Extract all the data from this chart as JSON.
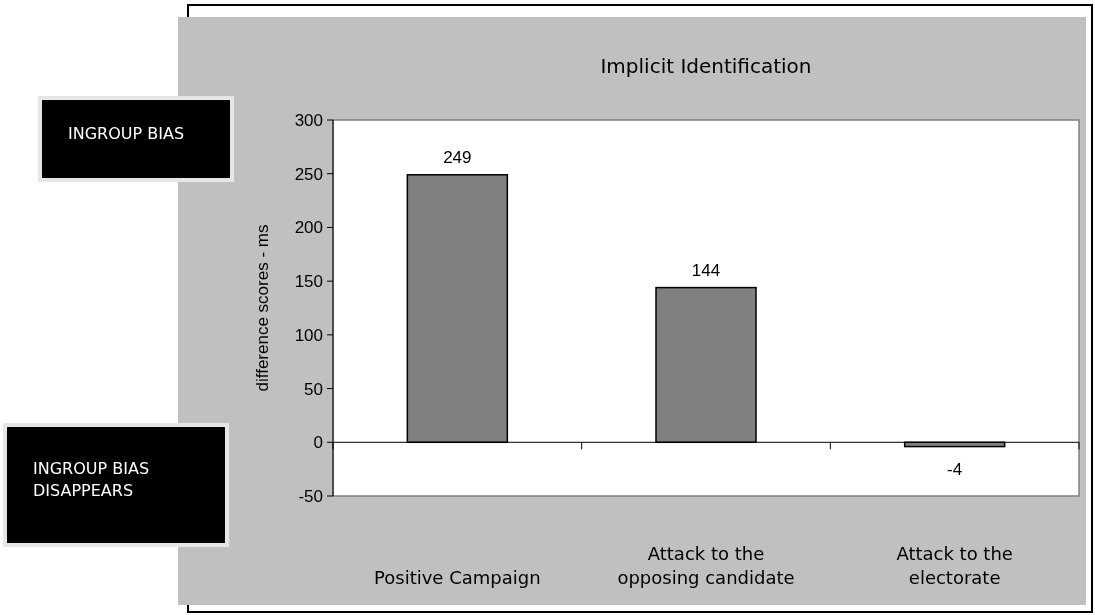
{
  "chart_data": {
    "type": "bar",
    "title": "Implicit Identification",
    "ylabel": "difference scores - ms",
    "categories": [
      "Positive Campaign",
      "Attack to the opposing candidate",
      "Attack to the electorate"
    ],
    "values": [
      249,
      144,
      -4
    ],
    "color": "#808080",
    "ylim": [
      -50,
      300
    ],
    "yticks": [
      -50,
      0,
      50,
      100,
      150,
      200,
      250,
      300
    ],
    "data_labels": true,
    "annotations": [
      "INGROUP BIAS",
      "INGROUP BIAS DISAPPEARS"
    ]
  }
}
